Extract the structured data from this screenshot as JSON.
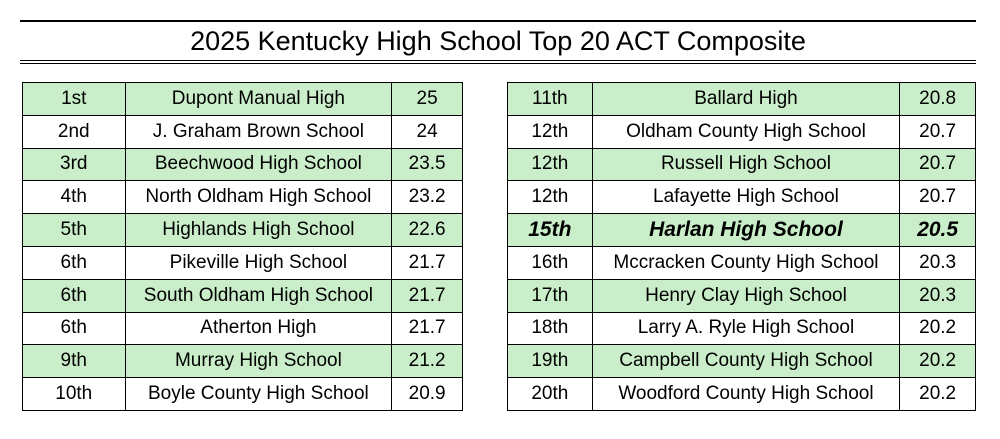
{
  "title": "2025 Kentucky High School Top 20 ACT Composite",
  "tables": [
    {
      "rows": [
        [
          "1st",
          "Dupont Manual High",
          "25"
        ],
        [
          "2nd",
          "J. Graham Brown School",
          "24"
        ],
        [
          "3rd",
          "Beechwood High School",
          "23.5"
        ],
        [
          "4th",
          "North Oldham High School",
          "23.2"
        ],
        [
          "5th",
          "Highlands High School",
          "22.6"
        ],
        [
          "6th",
          "Pikeville High School",
          "21.7"
        ],
        [
          "6th",
          "South Oldham High School",
          "21.7"
        ],
        [
          "6th",
          "Atherton High",
          "21.7"
        ],
        [
          "9th",
          "Murray High School",
          "21.2"
        ],
        [
          "10th",
          "Boyle County High School",
          "20.9"
        ]
      ]
    },
    {
      "rows": [
        [
          "11th",
          "Ballard High",
          "20.8"
        ],
        [
          "12th",
          "Oldham County High School",
          "20.7"
        ],
        [
          "12th",
          "Russell High School",
          "20.7"
        ],
        [
          "12th",
          "Lafayette High School",
          "20.7"
        ],
        [
          "15th",
          "Harlan High School",
          "20.5"
        ],
        [
          "16th",
          "Mccracken County High School",
          "20.3"
        ],
        [
          "17th",
          "Henry Clay High School",
          "20.3"
        ],
        [
          "18th",
          "Larry A. Ryle High School",
          "20.2"
        ],
        [
          "19th",
          "Campbell County High School",
          "20.2"
        ],
        [
          "20th",
          "Woodford County High School",
          "20.2"
        ]
      ]
    }
  ]
}
